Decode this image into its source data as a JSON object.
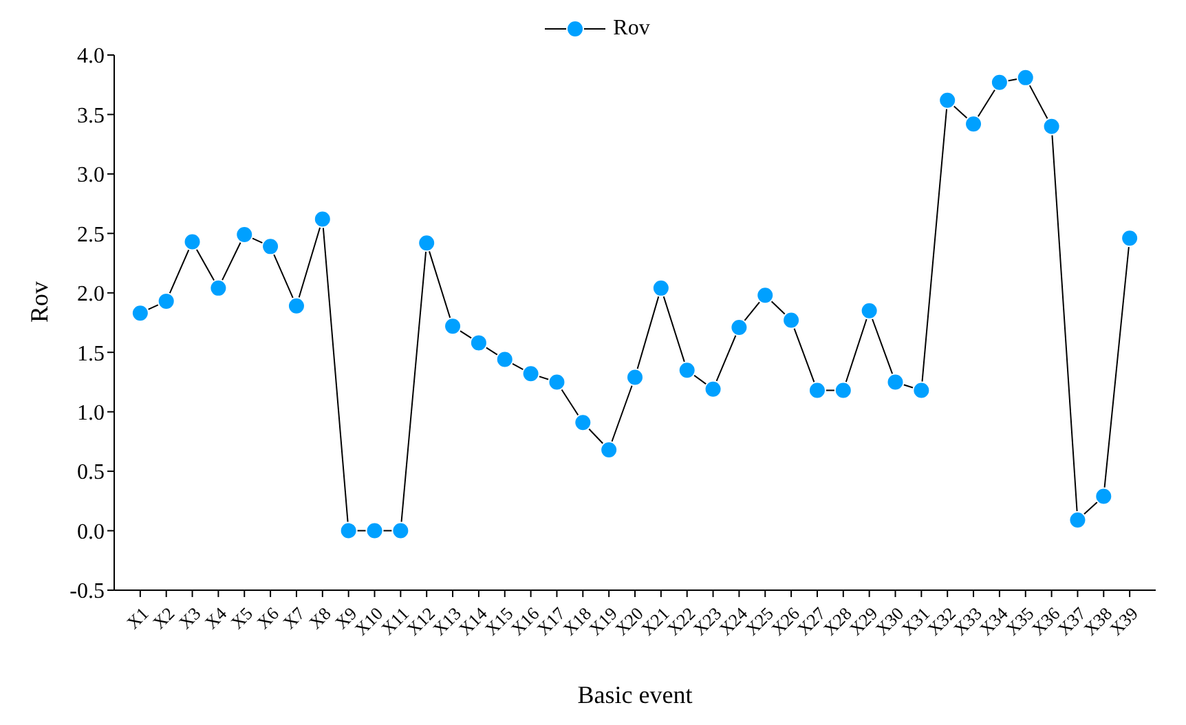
{
  "chart_data": {
    "type": "line",
    "xlabel": "Basic event",
    "ylabel": "Rov",
    "categories": [
      "X1",
      "X2",
      "X3",
      "X4",
      "X5",
      "X6",
      "X7",
      "X8",
      "X9",
      "X10",
      "X11",
      "X12",
      "X13",
      "X14",
      "X15",
      "X16",
      "X17",
      "X18",
      "X19",
      "X20",
      "X21",
      "X22",
      "X23",
      "X24",
      "X25",
      "X26",
      "X27",
      "X28",
      "X29",
      "X30",
      "X31",
      "X32",
      "X33",
      "X34",
      "X35",
      "X36",
      "X37",
      "X38",
      "X39"
    ],
    "series": [
      {
        "name": "Rov",
        "color": "#00a0ff",
        "values": [
          1.83,
          1.93,
          2.43,
          2.04,
          2.49,
          2.39,
          1.89,
          2.62,
          0,
          0,
          0,
          2.42,
          1.72,
          1.58,
          1.44,
          1.32,
          1.25,
          0.91,
          0.68,
          1.29,
          2.04,
          1.35,
          1.19,
          1.71,
          1.98,
          1.77,
          1.18,
          1.18,
          1.85,
          1.25,
          1.18,
          3.62,
          3.42,
          3.77,
          3.81,
          3.4,
          0.09,
          0.29,
          2.46
        ]
      }
    ],
    "ylim": [
      -0.5,
      4.0
    ],
    "yticks": [
      -0.5,
      {
        "value": 0,
        "label": "0.0"
      },
      0.5,
      {
        "value": 1,
        "label": "1.0"
      },
      1.5,
      {
        "value": 2,
        "label": "2.0"
      },
      2.5,
      {
        "value": 3,
        "label": "3.0"
      },
      3.5,
      {
        "value": 4,
        "label": "4.0"
      }
    ],
    "grid": false,
    "legend": "top",
    "marker": "circle",
    "line_style": "solid"
  }
}
